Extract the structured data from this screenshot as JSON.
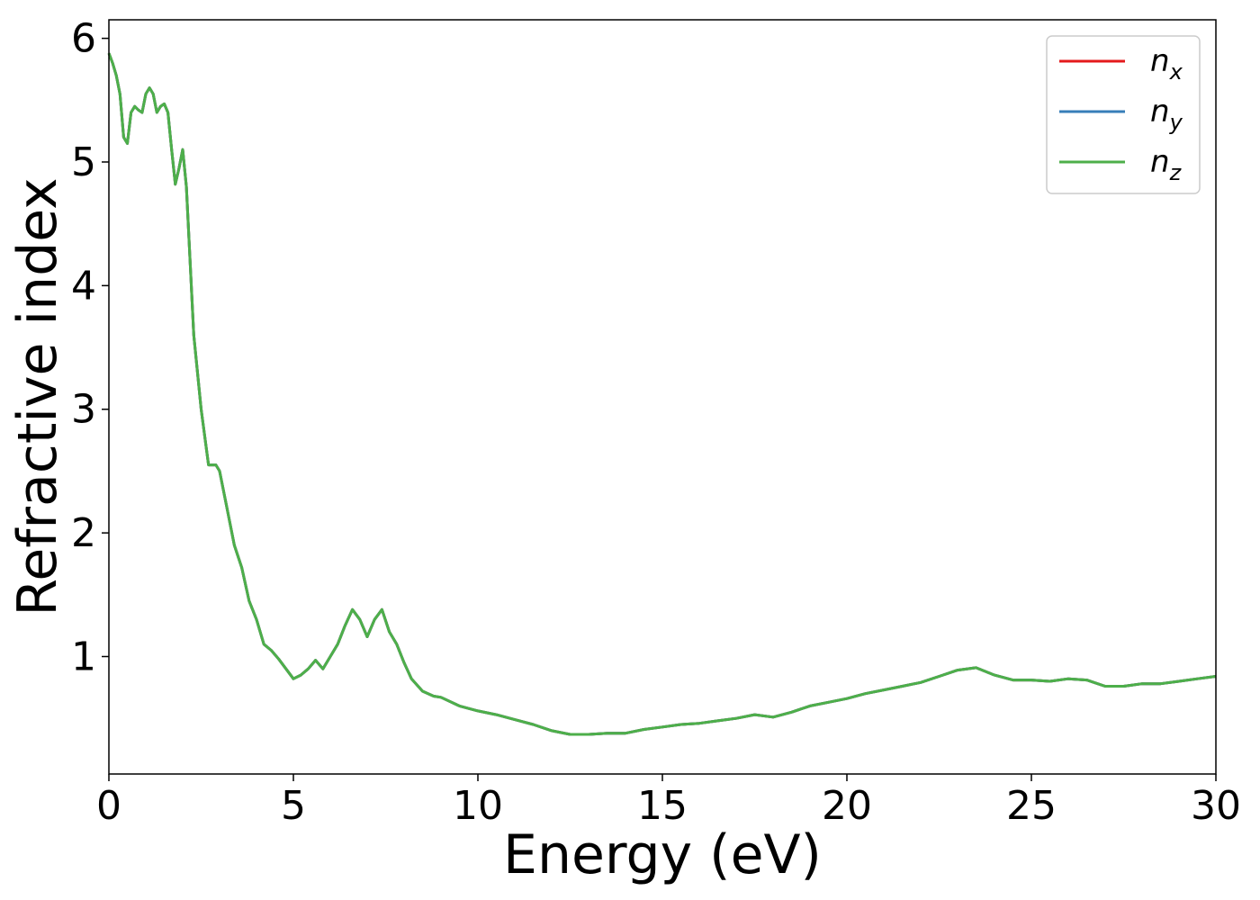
{
  "chart_data": {
    "type": "line",
    "xlabel": "Energy (eV)",
    "ylabel": "Refractive index",
    "xlim": [
      0,
      30
    ],
    "ylim": [
      0.05,
      6.15
    ],
    "xticks": [
      0,
      5,
      10,
      15,
      20,
      25,
      30
    ],
    "yticks": [
      1,
      2,
      3,
      4,
      5,
      6
    ],
    "xtick_labels": [
      "0",
      "5",
      "10",
      "15",
      "20",
      "25",
      "30"
    ],
    "ytick_labels": [
      "1",
      "2",
      "3",
      "4",
      "5",
      "6"
    ],
    "grid": false,
    "legend_position": "top-right",
    "series": [
      {
        "name": "n",
        "subscript": "x",
        "color": "#e41a1c",
        "x": [
          0,
          0.1,
          0.2,
          0.3,
          0.4,
          0.5,
          0.6,
          0.7,
          0.8,
          0.9,
          1.0,
          1.1,
          1.2,
          1.3,
          1.4,
          1.5,
          1.6,
          1.7,
          1.8,
          1.9,
          2.0,
          2.1,
          2.2,
          2.3,
          2.5,
          2.7,
          2.9,
          3.0,
          3.1,
          3.2,
          3.4,
          3.6,
          3.8,
          4.0,
          4.2,
          4.4,
          4.6,
          4.8,
          5.0,
          5.2,
          5.4,
          5.6,
          5.8,
          6.0,
          6.2,
          6.4,
          6.6,
          6.8,
          7.0,
          7.2,
          7.4,
          7.6,
          7.8,
          8.0,
          8.2,
          8.5,
          8.8,
          9.0,
          9.5,
          10,
          10.5,
          11,
          11.5,
          12,
          12.5,
          13,
          13.5,
          14,
          14.5,
          15,
          15.5,
          16,
          16.5,
          17,
          17.5,
          18,
          18.5,
          19,
          19.5,
          20,
          20.5,
          21,
          21.5,
          22,
          22.5,
          23,
          23.5,
          24,
          24.5,
          25,
          25.5,
          26,
          26.5,
          27,
          27.5,
          28,
          28.5,
          29,
          29.5,
          30
        ],
        "y": [
          5.88,
          5.8,
          5.7,
          5.55,
          5.2,
          5.15,
          5.4,
          5.45,
          5.42,
          5.4,
          5.55,
          5.6,
          5.55,
          5.4,
          5.45,
          5.47,
          5.4,
          5.1,
          4.82,
          4.95,
          5.1,
          4.8,
          4.2,
          3.6,
          3.0,
          2.55,
          2.55,
          2.5,
          2.35,
          2.2,
          1.9,
          1.72,
          1.45,
          1.3,
          1.1,
          1.05,
          0.98,
          0.9,
          0.82,
          0.85,
          0.9,
          0.97,
          0.9,
          1.0,
          1.1,
          1.25,
          1.38,
          1.3,
          1.16,
          1.3,
          1.38,
          1.2,
          1.1,
          0.95,
          0.82,
          0.72,
          0.68,
          0.67,
          0.6,
          0.56,
          0.53,
          0.49,
          0.45,
          0.4,
          0.37,
          0.37,
          0.38,
          0.38,
          0.41,
          0.43,
          0.45,
          0.46,
          0.48,
          0.5,
          0.53,
          0.51,
          0.55,
          0.6,
          0.63,
          0.66,
          0.7,
          0.73,
          0.76,
          0.79,
          0.84,
          0.89,
          0.91,
          0.85,
          0.81,
          0.81,
          0.8,
          0.82,
          0.81,
          0.76,
          0.76,
          0.78,
          0.78,
          0.8,
          0.82,
          0.84
        ]
      },
      {
        "name": "n",
        "subscript": "y",
        "color": "#377eb8",
        "x": [
          0,
          0.1,
          0.2,
          0.3,
          0.4,
          0.5,
          0.6,
          0.7,
          0.8,
          0.9,
          1.0,
          1.1,
          1.2,
          1.3,
          1.4,
          1.5,
          1.6,
          1.7,
          1.8,
          1.9,
          2.0,
          2.1,
          2.2,
          2.3,
          2.5,
          2.7,
          2.9,
          3.0,
          3.1,
          3.2,
          3.4,
          3.6,
          3.8,
          4.0,
          4.2,
          4.4,
          4.6,
          4.8,
          5.0,
          5.2,
          5.4,
          5.6,
          5.8,
          6.0,
          6.2,
          6.4,
          6.6,
          6.8,
          7.0,
          7.2,
          7.4,
          7.6,
          7.8,
          8.0,
          8.2,
          8.5,
          8.8,
          9.0,
          9.5,
          10,
          10.5,
          11,
          11.5,
          12,
          12.5,
          13,
          13.5,
          14,
          14.5,
          15,
          15.5,
          16,
          16.5,
          17,
          17.5,
          18,
          18.5,
          19,
          19.5,
          20,
          20.5,
          21,
          21.5,
          22,
          22.5,
          23,
          23.5,
          24,
          24.5,
          25,
          25.5,
          26,
          26.5,
          27,
          27.5,
          28,
          28.5,
          29,
          29.5,
          30
        ],
        "y": [
          5.88,
          5.8,
          5.7,
          5.55,
          5.2,
          5.15,
          5.4,
          5.45,
          5.42,
          5.4,
          5.55,
          5.6,
          5.55,
          5.4,
          5.45,
          5.47,
          5.4,
          5.1,
          4.82,
          4.95,
          5.1,
          4.8,
          4.2,
          3.6,
          3.0,
          2.55,
          2.55,
          2.5,
          2.35,
          2.2,
          1.9,
          1.72,
          1.45,
          1.3,
          1.1,
          1.05,
          0.98,
          0.9,
          0.82,
          0.85,
          0.9,
          0.97,
          0.9,
          1.0,
          1.1,
          1.25,
          1.38,
          1.3,
          1.16,
          1.3,
          1.38,
          1.2,
          1.1,
          0.95,
          0.82,
          0.72,
          0.68,
          0.67,
          0.6,
          0.56,
          0.53,
          0.49,
          0.45,
          0.4,
          0.37,
          0.37,
          0.38,
          0.38,
          0.41,
          0.43,
          0.45,
          0.46,
          0.48,
          0.5,
          0.53,
          0.51,
          0.55,
          0.6,
          0.63,
          0.66,
          0.7,
          0.73,
          0.76,
          0.79,
          0.84,
          0.89,
          0.91,
          0.85,
          0.81,
          0.81,
          0.8,
          0.82,
          0.81,
          0.76,
          0.76,
          0.78,
          0.78,
          0.8,
          0.82,
          0.84
        ]
      },
      {
        "name": "n",
        "subscript": "z",
        "color": "#4daf4a",
        "x": [
          0,
          0.1,
          0.2,
          0.3,
          0.4,
          0.5,
          0.6,
          0.7,
          0.8,
          0.9,
          1.0,
          1.1,
          1.2,
          1.3,
          1.4,
          1.5,
          1.6,
          1.7,
          1.8,
          1.9,
          2.0,
          2.1,
          2.2,
          2.3,
          2.5,
          2.7,
          2.9,
          3.0,
          3.1,
          3.2,
          3.4,
          3.6,
          3.8,
          4.0,
          4.2,
          4.4,
          4.6,
          4.8,
          5.0,
          5.2,
          5.4,
          5.6,
          5.8,
          6.0,
          6.2,
          6.4,
          6.6,
          6.8,
          7.0,
          7.2,
          7.4,
          7.6,
          7.8,
          8.0,
          8.2,
          8.5,
          8.8,
          9.0,
          9.5,
          10,
          10.5,
          11,
          11.5,
          12,
          12.5,
          13,
          13.5,
          14,
          14.5,
          15,
          15.5,
          16,
          16.5,
          17,
          17.5,
          18,
          18.5,
          19,
          19.5,
          20,
          20.5,
          21,
          21.5,
          22,
          22.5,
          23,
          23.5,
          24,
          24.5,
          25,
          25.5,
          26,
          26.5,
          27,
          27.5,
          28,
          28.5,
          29,
          29.5,
          30
        ],
        "y": [
          5.88,
          5.8,
          5.7,
          5.55,
          5.2,
          5.15,
          5.4,
          5.45,
          5.42,
          5.4,
          5.55,
          5.6,
          5.55,
          5.4,
          5.45,
          5.47,
          5.4,
          5.1,
          4.82,
          4.95,
          5.1,
          4.8,
          4.2,
          3.6,
          3.0,
          2.55,
          2.55,
          2.5,
          2.35,
          2.2,
          1.9,
          1.72,
          1.45,
          1.3,
          1.1,
          1.05,
          0.98,
          0.9,
          0.82,
          0.85,
          0.9,
          0.97,
          0.9,
          1.0,
          1.1,
          1.25,
          1.38,
          1.3,
          1.16,
          1.3,
          1.38,
          1.2,
          1.1,
          0.95,
          0.82,
          0.72,
          0.68,
          0.67,
          0.6,
          0.56,
          0.53,
          0.49,
          0.45,
          0.4,
          0.37,
          0.37,
          0.38,
          0.38,
          0.41,
          0.43,
          0.45,
          0.46,
          0.48,
          0.5,
          0.53,
          0.51,
          0.55,
          0.6,
          0.63,
          0.66,
          0.7,
          0.73,
          0.76,
          0.79,
          0.84,
          0.89,
          0.91,
          0.85,
          0.81,
          0.81,
          0.8,
          0.82,
          0.81,
          0.76,
          0.76,
          0.78,
          0.78,
          0.8,
          0.82,
          0.84
        ]
      }
    ]
  }
}
